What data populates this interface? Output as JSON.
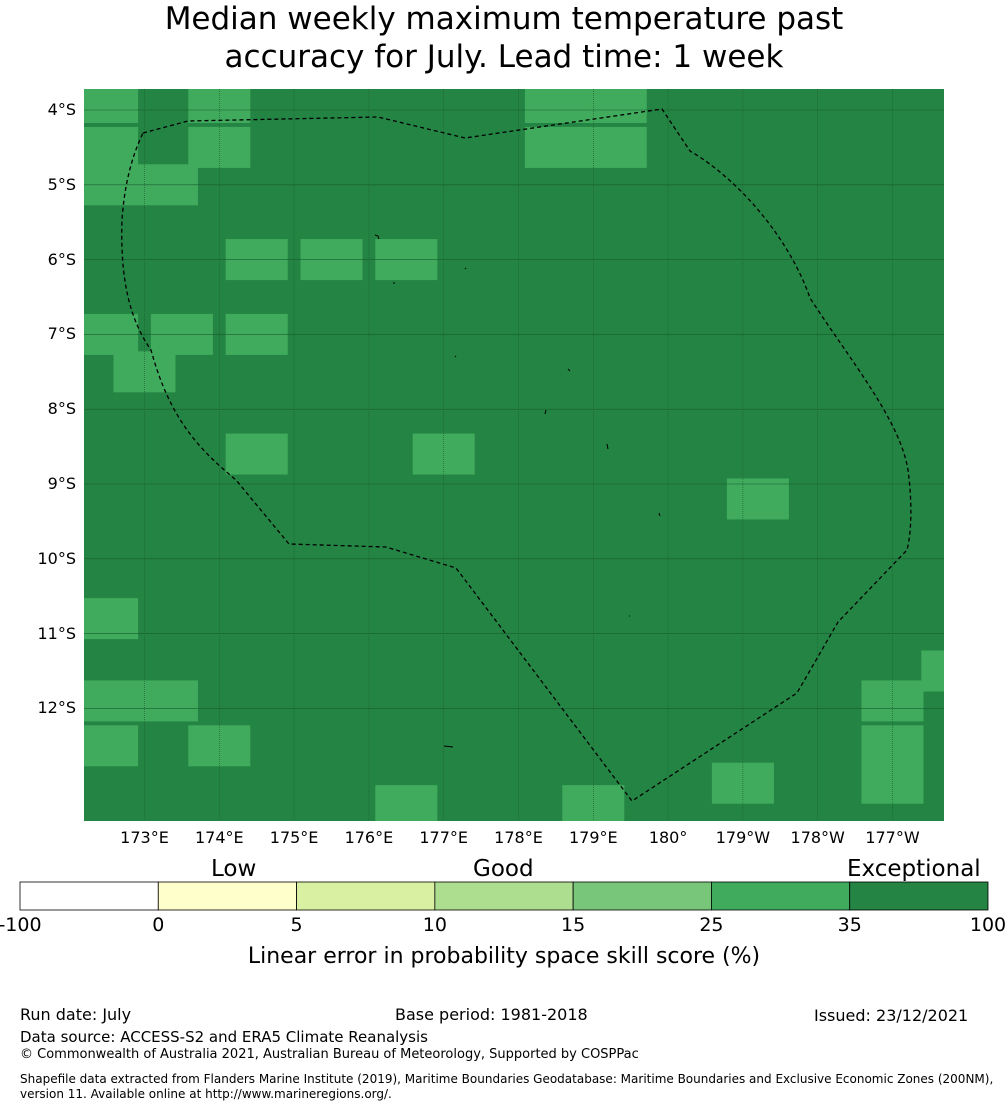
{
  "title": {
    "line1": "Median weekly maximum temperature past",
    "line2": "accuracy for July. Lead time: 1 week"
  },
  "map": {
    "lat_labels": [
      "4°S",
      "5°S",
      "6°S",
      "7°S",
      "8°S",
      "9°S",
      "10°S",
      "11°S",
      "12°S"
    ],
    "lon_labels": [
      "173°E",
      "174°E",
      "175°E",
      "176°E",
      "177°E",
      "178°E",
      "179°E",
      "180°",
      "179°W",
      "178°W",
      "177°W"
    ],
    "colors": {
      "exceptional": "#238443",
      "band_25_35": "#41ab5d",
      "boundary": "#000000"
    },
    "band_25_35_cells": [
      {
        "lat": -3.9,
        "lon": 172.5
      },
      {
        "lat": -3.9,
        "lon": 174.0
      },
      {
        "lat": -3.9,
        "lon": 178.5
      },
      {
        "lat": -3.9,
        "lon": 179.3
      },
      {
        "lat": -4.5,
        "lon": 172.5
      },
      {
        "lat": -4.5,
        "lon": 174.0
      },
      {
        "lat": -4.5,
        "lon": 178.5
      },
      {
        "lat": -4.5,
        "lon": 179.3
      },
      {
        "lat": -5.0,
        "lon": 172.5
      },
      {
        "lat": -5.0,
        "lon": 173.3
      },
      {
        "lat": -6.0,
        "lon": 174.5
      },
      {
        "lat": -6.0,
        "lon": 175.5
      },
      {
        "lat": -6.0,
        "lon": 176.5
      },
      {
        "lat": -7.0,
        "lon": 172.5
      },
      {
        "lat": -7.0,
        "lon": 173.5
      },
      {
        "lat": -7.0,
        "lon": 174.5
      },
      {
        "lat": -7.5,
        "lon": 173.0
      },
      {
        "lat": -8.6,
        "lon": 174.5
      },
      {
        "lat": -8.6,
        "lon": 177.0
      },
      {
        "lat": -9.2,
        "lon": -178.8
      },
      {
        "lat": -10.8,
        "lon": 172.5
      },
      {
        "lat": -11.5,
        "lon": -176.2
      },
      {
        "lat": -11.9,
        "lon": 172.5
      },
      {
        "lat": -11.9,
        "lon": 173.3
      },
      {
        "lat": -11.9,
        "lon": -177.0
      },
      {
        "lat": -12.5,
        "lon": 172.5
      },
      {
        "lat": -12.5,
        "lon": 174.0
      },
      {
        "lat": -12.5,
        "lon": -177.0
      },
      {
        "lat": -13.0,
        "lon": -179.0
      },
      {
        "lat": -13.0,
        "lon": -177.0
      },
      {
        "lat": -13.3,
        "lon": 176.5
      },
      {
        "lat": -13.3,
        "lon": 179.0
      }
    ]
  },
  "legend": {
    "categories": [
      "Low",
      "Good",
      "Exceptional"
    ],
    "bins": [
      {
        "from": -100,
        "to": 0,
        "color": "#ffffff"
      },
      {
        "from": 0,
        "to": 5,
        "color": "#ffffcc"
      },
      {
        "from": 5,
        "to": 10,
        "color": "#d9f0a3"
      },
      {
        "from": 10,
        "to": 15,
        "color": "#addd8e"
      },
      {
        "from": 15,
        "to": 25,
        "color": "#78c679"
      },
      {
        "from": 25,
        "to": 35,
        "color": "#41ab5d"
      },
      {
        "from": 35,
        "to": 100,
        "color": "#238443"
      }
    ],
    "ticks": [
      "-100",
      "0",
      "5",
      "10",
      "15",
      "25",
      "35",
      "100"
    ],
    "title": "Linear error in probability space skill score (%)"
  },
  "footer": {
    "run_date": "Run date: July",
    "base_period": "Base period: 1981-2018",
    "issued": "Issued: 23/12/2021",
    "data_source": "Data source: ACCESS-S2 and ERA5 Climate Reanalysis",
    "copyright": "© Commonwealth of Australia 2021, Australian Bureau of Meteorology, Supported by COSPPac",
    "shapefile_line1": "Shapefile data extracted from Flanders Marine Institute (2019), Maritime Boundaries Geodatabase: Maritime Boundaries and Exclusive Economic Zones (200NM),",
    "shapefile_line2": "version 11. Available online at http://www.marineregions.org/."
  }
}
